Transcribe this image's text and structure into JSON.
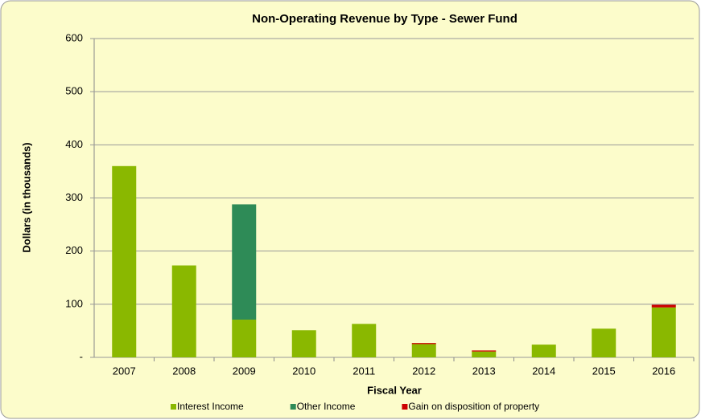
{
  "chart_data": {
    "type": "stacked_bar",
    "title": "Non-Operating Revenue by Type - Sewer Fund",
    "x_label": "Fiscal Year",
    "y_label": "Dollars (in thousands)",
    "categories": [
      "2007",
      "2008",
      "2009",
      "2010",
      "2011",
      "2012",
      "2013",
      "2014",
      "2015",
      "2016"
    ],
    "series": [
      {
        "name": "Interest Income",
        "color": "#8ab800",
        "values": [
          360,
          173,
          71,
          51,
          63,
          25,
          11,
          24,
          54,
          94
        ]
      },
      {
        "name": "Other Income",
        "color": "#2e8b57",
        "values": [
          0,
          0,
          217,
          0,
          0,
          0,
          0,
          0,
          0,
          0
        ]
      },
      {
        "name": "Gain on disposition of property",
        "color": "#cc0000",
        "values": [
          0,
          0,
          0,
          0,
          0,
          2,
          2,
          0,
          0,
          5
        ]
      }
    ],
    "ylim": [
      0,
      600
    ],
    "yticks": [
      {
        "value": 0,
        "label": "-"
      },
      100,
      200,
      300,
      400,
      500,
      600
    ],
    "grid": true,
    "legend": "bottom"
  }
}
